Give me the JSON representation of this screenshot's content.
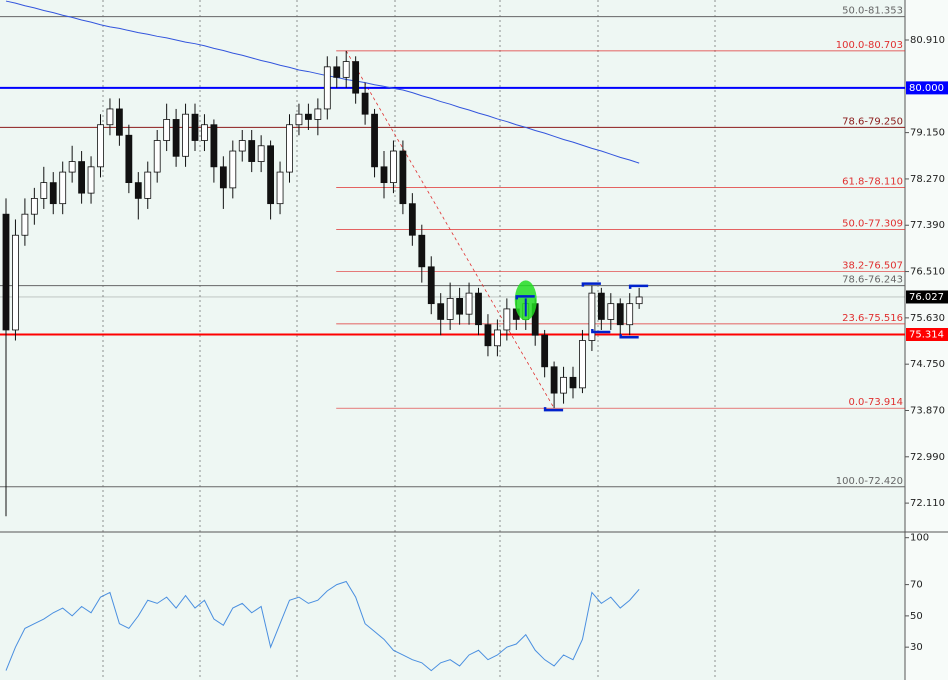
{
  "chart_data": [
    {
      "type": "candlestick",
      "open": [
        77.6,
        75.4,
        77.2,
        77.6,
        77.9,
        78.2,
        77.8,
        78.4,
        78.6,
        78.0,
        78.5,
        79.3,
        79.6,
        79.1,
        78.2,
        77.9,
        78.4,
        79.0,
        79.4,
        78.7,
        79.5,
        79.0,
        79.3,
        78.5,
        78.1,
        78.8,
        79.0,
        78.6,
        78.9,
        77.8,
        78.4,
        79.3,
        79.5,
        79.4,
        79.6,
        80.4,
        80.2,
        80.5,
        79.9,
        79.5,
        78.5,
        78.2,
        78.8,
        77.8,
        77.2,
        76.6,
        75.9,
        75.6,
        76.0,
        75.7,
        76.1,
        75.5,
        75.1,
        75.4,
        75.8,
        75.6,
        75.9,
        75.3,
        74.7,
        74.2,
        74.5,
        74.3,
        75.2,
        76.1,
        75.6,
        75.9,
        75.5,
        75.9
      ],
      "high": [
        77.9,
        77.5,
        77.9,
        78.1,
        78.5,
        78.4,
        78.6,
        78.9,
        78.8,
        78.7,
        79.5,
        79.8,
        79.8,
        79.3,
        78.4,
        78.6,
        79.2,
        79.7,
        79.6,
        79.7,
        79.7,
        79.5,
        79.4,
        78.7,
        79.0,
        79.2,
        79.2,
        79.1,
        79.0,
        78.6,
        79.5,
        79.7,
        79.7,
        79.8,
        80.6,
        80.6,
        80.703,
        80.6,
        80.1,
        79.6,
        78.8,
        79.0,
        79.0,
        78.0,
        77.4,
        76.8,
        76.1,
        76.3,
        76.2,
        76.3,
        76.2,
        75.7,
        75.6,
        76.0,
        76.0,
        76.0,
        76.0,
        75.4,
        74.8,
        74.7,
        74.7,
        75.4,
        76.243,
        76.2,
        76.1,
        76.0,
        76.1,
        76.2
      ],
      "low": [
        71.86,
        75.2,
        77.0,
        77.4,
        77.7,
        77.6,
        77.6,
        78.2,
        77.8,
        77.8,
        78.3,
        79.1,
        78.9,
        78.0,
        77.5,
        77.7,
        78.2,
        78.8,
        78.5,
        78.5,
        78.8,
        78.8,
        78.2,
        77.7,
        77.9,
        78.6,
        78.4,
        78.4,
        77.5,
        77.6,
        78.2,
        79.1,
        79.2,
        79.1,
        79.4,
        80.0,
        80.0,
        79.7,
        79.3,
        78.3,
        77.9,
        78.0,
        77.6,
        77.0,
        76.3,
        75.7,
        75.3,
        75.4,
        75.5,
        75.5,
        75.3,
        74.9,
        74.9,
        75.2,
        75.4,
        75.4,
        75.1,
        74.5,
        73.914,
        74.0,
        74.1,
        74.2,
        75.0,
        75.4,
        75.4,
        75.3,
        75.3,
        75.8
      ],
      "close": [
        75.4,
        77.2,
        77.6,
        77.9,
        78.2,
        77.8,
        78.4,
        78.6,
        78.0,
        78.5,
        79.3,
        79.6,
        79.1,
        78.2,
        77.9,
        78.4,
        79.0,
        79.4,
        78.7,
        79.5,
        79.0,
        79.3,
        78.5,
        78.1,
        78.8,
        79.0,
        78.6,
        78.9,
        77.8,
        78.4,
        79.3,
        79.5,
        79.4,
        79.6,
        80.4,
        80.2,
        80.5,
        79.9,
        79.5,
        78.5,
        78.2,
        78.8,
        77.8,
        77.2,
        76.6,
        75.9,
        75.6,
        76.0,
        75.7,
        76.1,
        75.5,
        75.1,
        75.4,
        75.8,
        75.6,
        75.9,
        75.3,
        74.7,
        74.2,
        74.5,
        74.3,
        75.2,
        76.1,
        75.6,
        75.9,
        75.5,
        75.9,
        76.027
      ],
      "ma": [
        81.65,
        81.61,
        81.56,
        81.52,
        81.47,
        81.43,
        81.38,
        81.34,
        81.29,
        81.25,
        81.2,
        81.16,
        81.13,
        81.09,
        81.05,
        81.02,
        80.98,
        80.95,
        80.91,
        80.87,
        80.84,
        80.8,
        80.75,
        80.71,
        80.66,
        80.62,
        80.57,
        80.52,
        80.48,
        80.43,
        80.39,
        80.34,
        80.31,
        80.27,
        80.23,
        80.2,
        80.16,
        80.13,
        80.1,
        80.06,
        80.03,
        79.99,
        79.96,
        79.91,
        79.85,
        79.8,
        79.74,
        79.69,
        79.63,
        79.58,
        79.52,
        79.47,
        79.41,
        79.36,
        79.3,
        79.25,
        79.19,
        79.14,
        79.08,
        79.02,
        78.97,
        78.91,
        78.85,
        78.8,
        78.74,
        78.68,
        78.63,
        78.57
      ],
      "ma_color": "#3355dd",
      "ylim": [
        71.58,
        81.67
      ],
      "yticks": [
        {
          "value": 80.91,
          "label": "80.910"
        },
        {
          "value": 79.15,
          "label": "79.150"
        },
        {
          "value": 78.27,
          "label": "78.270"
        },
        {
          "value": 77.39,
          "label": "77.390"
        },
        {
          "value": 76.51,
          "label": "76.510"
        },
        {
          "value": 75.63,
          "label": "75.630"
        },
        {
          "value": 74.75,
          "label": "74.750"
        },
        {
          "value": 73.87,
          "label": "73.870"
        },
        {
          "value": 72.99,
          "label": "72.990"
        },
        {
          "value": 72.11,
          "label": "72.110"
        }
      ],
      "lines": [
        {
          "label": "50.0-81.353",
          "value": 81.353,
          "color": "#666666"
        },
        {
          "label": "78.6-79.250",
          "value": 79.25,
          "color": "#8b1a1a"
        },
        {
          "label": "78.6-76.243",
          "value": 76.243,
          "color": "#666666"
        },
        {
          "label": "100.0-72.420",
          "value": 72.42,
          "color": "#666666"
        }
      ],
      "fib_color": "#e03030",
      "fib_levels": [
        {
          "label": "100.0-80.703",
          "value": 80.703
        },
        {
          "label": "61.8-78.110",
          "value": 78.11
        },
        {
          "label": "50.0-77.309",
          "value": 77.309
        },
        {
          "label": "38.2-76.507",
          "value": 76.507
        },
        {
          "label": "23.6-75.516",
          "value": 75.516
        },
        {
          "label": "0.0-73.914",
          "value": 73.914
        }
      ],
      "price_tags": [
        {
          "label": "80.000",
          "value": 80,
          "color": "#0000ff",
          "width": 2
        },
        {
          "label": "76.027",
          "value": 76.027,
          "color": "#000000",
          "width": 0.5
        },
        {
          "label": "75.314",
          "value": 75.314,
          "color": "#ff0000",
          "width": 2
        }
      ]
    },
    {
      "type": "line",
      "values": [
        15,
        30,
        42,
        45,
        48,
        52,
        55,
        50,
        56,
        52,
        62,
        65,
        45,
        42,
        50,
        60,
        58,
        62,
        55,
        63,
        55,
        60,
        48,
        44,
        55,
        58,
        52,
        56,
        30,
        45,
        60,
        62,
        58,
        60,
        66,
        70,
        72,
        62,
        45,
        40,
        35,
        28,
        25,
        22,
        20,
        15,
        20,
        22,
        18,
        25,
        28,
        22,
        25,
        30,
        32,
        38,
        28,
        22,
        18,
        25,
        22,
        35,
        65,
        58,
        62,
        55,
        60,
        67
      ],
      "color": "#4a8fe0",
      "ylim": [
        9,
        103
      ],
      "yticks": [
        100,
        70,
        50,
        30
      ]
    }
  ]
}
